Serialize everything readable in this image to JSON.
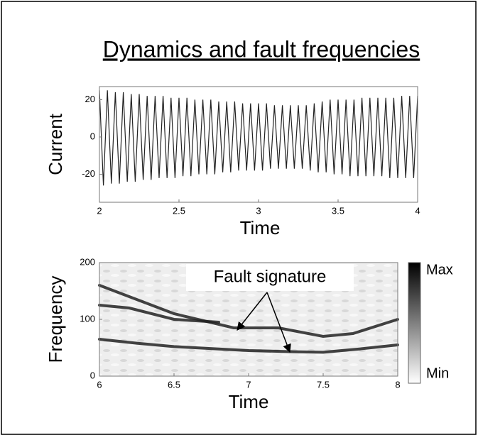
{
  "title": "Dynamics and fault frequencies",
  "chart_data": [
    {
      "type": "line",
      "xlabel": "Time",
      "ylabel": "Current",
      "color": "#222222",
      "xlim": [
        2,
        4
      ],
      "xticks": [
        2,
        2.5,
        3,
        3.5,
        4
      ],
      "ylim": [
        -35,
        27
      ],
      "yticks": [
        -20,
        0,
        20
      ],
      "x": [
        2,
        2.025,
        2.05,
        2.075,
        2.1,
        2.125,
        2.15,
        2.175,
        2.2,
        2.225,
        2.25,
        2.275,
        2.3,
        2.325,
        2.35,
        2.375,
        2.4,
        2.425,
        2.45,
        2.475,
        2.5,
        2.525,
        2.55,
        2.575,
        2.6,
        2.625,
        2.65,
        2.675,
        2.7,
        2.725,
        2.75,
        2.775,
        2.8,
        2.825,
        2.85,
        2.875,
        2.9,
        2.925,
        2.95,
        2.975,
        3,
        3.025,
        3.05,
        3.075,
        3.1,
        3.125,
        3.15,
        3.175,
        3.2,
        3.225,
        3.25,
        3.275,
        3.3,
        3.325,
        3.35,
        3.375,
        3.4,
        3.425,
        3.45,
        3.475,
        3.5,
        3.525,
        3.55,
        3.575,
        3.6,
        3.625,
        3.65,
        3.675,
        3.7,
        3.725,
        3.75,
        3.775,
        3.8,
        3.825,
        3.85,
        3.875,
        3.9,
        3.925,
        3.95,
        3.975,
        4
      ],
      "values": [
        25,
        -26,
        25,
        -25,
        24,
        -25,
        24,
        -24,
        23,
        -24,
        23,
        -23,
        22,
        -23,
        22,
        -22,
        22,
        -22,
        21,
        -22,
        21,
        -21,
        21,
        -21,
        20,
        -20,
        20,
        -20,
        20,
        -20,
        19,
        -19,
        19,
        -19,
        19,
        -18,
        18,
        -18,
        18,
        -18,
        18,
        -18,
        18,
        -17,
        17,
        -17,
        17,
        -17,
        17,
        -17,
        17,
        -17,
        17,
        -18,
        18,
        -19,
        19,
        -19,
        20,
        -20,
        20,
        -20,
        20,
        -21,
        20,
        -21,
        21,
        -21,
        21,
        -21,
        21,
        -21,
        21,
        -22,
        21,
        -22,
        22,
        -22,
        22,
        -22,
        22
      ]
    },
    {
      "type": "spectrogram",
      "xlabel": "Time",
      "ylabel": "Frequency",
      "xlim": [
        6,
        8
      ],
      "xticks": [
        6,
        6.5,
        7,
        7.5,
        8
      ],
      "ylim": [
        0,
        200
      ],
      "yticks": [
        0,
        100,
        200
      ],
      "annotation": "Fault signature",
      "colorbar_labels": [
        "Max",
        "Min"
      ],
      "ridges": [
        {
          "x": [
            6,
            6.2,
            6.5,
            6.9,
            7.2,
            7.5,
            7.7,
            8
          ],
          "values": [
            160,
            140,
            110,
            85,
            85,
            70,
            75,
            100
          ]
        },
        {
          "x": [
            6,
            6.25,
            6.5,
            7,
            7.3,
            7.5,
            7.75,
            8
          ],
          "values": [
            65,
            58,
            52,
            45,
            43,
            42,
            48,
            55
          ]
        },
        {
          "x": [
            6,
            6.2,
            6.5,
            6.8
          ],
          "values": [
            125,
            120,
            100,
            95
          ]
        }
      ]
    }
  ]
}
